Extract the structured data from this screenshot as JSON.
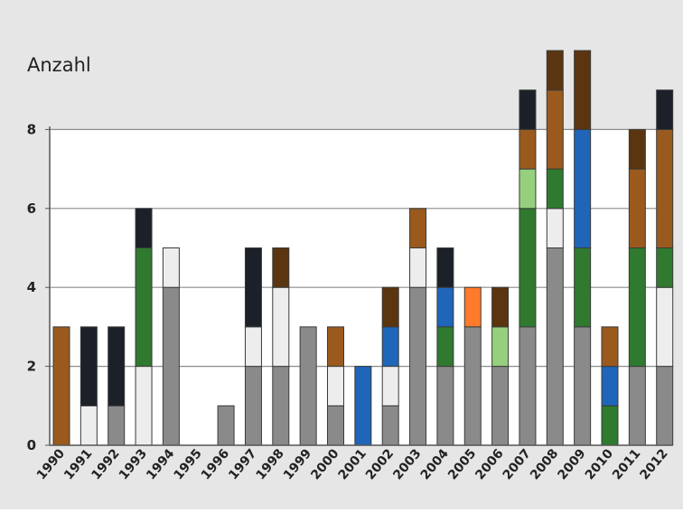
{
  "chart_data": {
    "type": "bar",
    "stacked": true,
    "ylabel": "Anzahl",
    "xlabel": "",
    "ylim": [
      0,
      10
    ],
    "yticks": [
      0,
      2,
      4,
      6,
      8
    ],
    "grid": true,
    "categories": [
      "1990",
      "1991",
      "1992",
      "1993",
      "1994",
      "1995",
      "1996",
      "1997",
      "1998",
      "1999",
      "2000",
      "2001",
      "2002",
      "2003",
      "2004",
      "2005",
      "2006",
      "2007",
      "2008",
      "2009",
      "2010",
      "2011",
      "2012"
    ],
    "colors": {
      "background": "#e6e6e6",
      "plot_area": "#ffffff",
      "gridline": "#8c8c8c"
    },
    "series": [
      {
        "color": "#8a8a8a",
        "values": [
          0,
          0,
          1,
          0,
          4,
          0,
          1,
          2,
          2,
          3,
          1,
          0,
          1,
          4,
          2,
          3,
          2,
          3,
          5,
          3,
          0,
          2,
          2
        ]
      },
      {
        "color": "#ededed",
        "values": [
          0,
          1,
          0,
          2,
          1,
          0,
          0,
          1,
          2,
          0,
          1,
          0,
          1,
          1,
          0,
          0,
          0,
          0,
          1,
          0,
          0,
          0,
          2
        ]
      },
      {
        "color": "#2f7a2f",
        "values": [
          0,
          0,
          0,
          3,
          0,
          0,
          0,
          0,
          0,
          0,
          0,
          0,
          0,
          0,
          1,
          0,
          0,
          3,
          1,
          2,
          1,
          3,
          1
        ]
      },
      {
        "color": "#96d07c",
        "values": [
          0,
          0,
          0,
          0,
          0,
          0,
          0,
          0,
          0,
          0,
          0,
          0,
          0,
          0,
          0,
          0,
          1,
          1,
          0,
          0,
          0,
          0,
          0
        ]
      },
      {
        "color": "#1f66b8",
        "values": [
          0,
          0,
          0,
          0,
          0,
          0,
          0,
          0,
          0,
          0,
          0,
          2,
          1,
          0,
          1,
          0,
          0,
          0,
          0,
          3,
          1,
          0,
          0
        ]
      },
      {
        "color": "#ff7a2a",
        "values": [
          0,
          0,
          0,
          0,
          0,
          0,
          0,
          0,
          0,
          0,
          0,
          0,
          0,
          0,
          0,
          1,
          0,
          0,
          0,
          0,
          0,
          0,
          0
        ]
      },
      {
        "color": "#9a5a1e",
        "values": [
          3,
          0,
          0,
          0,
          0,
          0,
          0,
          0,
          0,
          0,
          1,
          0,
          0,
          1,
          0,
          0,
          0,
          1,
          2,
          0,
          1,
          2,
          3
        ]
      },
      {
        "color": "#5a3510",
        "values": [
          0,
          0,
          0,
          0,
          0,
          0,
          0,
          0,
          1,
          0,
          0,
          0,
          1,
          0,
          0,
          0,
          1,
          0,
          1,
          2,
          0,
          1,
          0
        ]
      },
      {
        "color": "#1c2028",
        "values": [
          0,
          2,
          2,
          1,
          0,
          0,
          0,
          2,
          0,
          0,
          0,
          0,
          0,
          0,
          1,
          0,
          0,
          1,
          0,
          0,
          0,
          0,
          1
        ]
      }
    ]
  }
}
